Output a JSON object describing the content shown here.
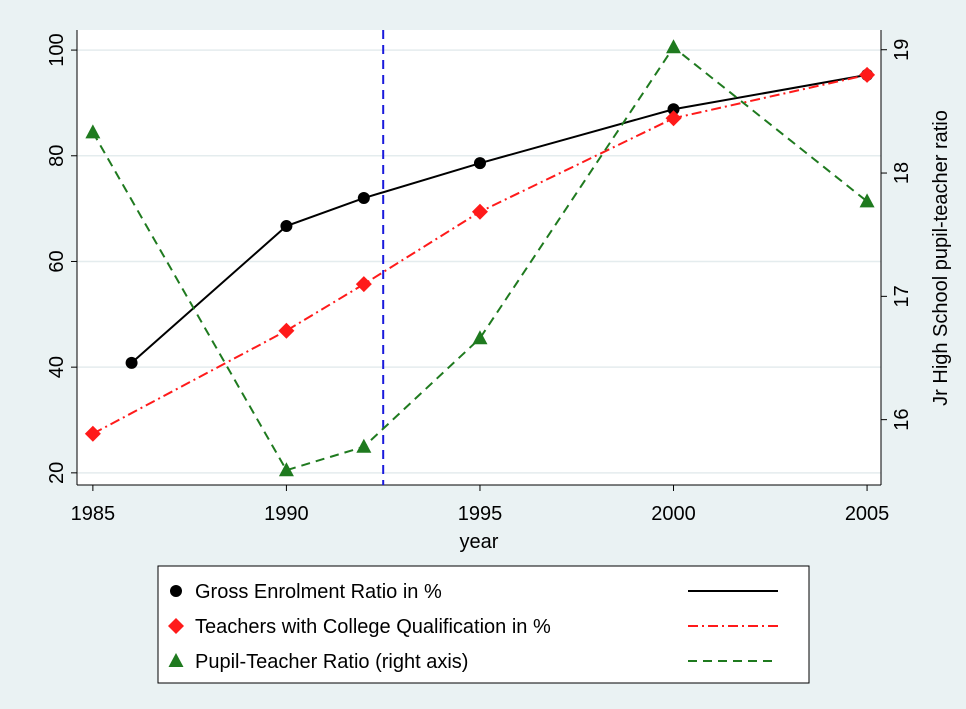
{
  "chart_data": {
    "type": "line",
    "x_label": "year",
    "y2_label": "Jr High School pupil-teacher ratio",
    "xlim": [
      1984.59,
      2005.36
    ],
    "xticks": [
      1985,
      1990,
      1995,
      2000,
      2005
    ],
    "ylim": [
      17.7,
      103.8
    ],
    "yticks": [
      20,
      40,
      60,
      80,
      100
    ],
    "y2lim": [
      15.47,
      19.16
    ],
    "y2ticks": [
      16,
      17,
      18,
      19
    ],
    "grid": true,
    "vline": {
      "x": 1992.5,
      "color": "#1a1adc"
    },
    "series": [
      {
        "name": "Gross Enrolment Ratio in %",
        "color": "#000000",
        "marker": "circle",
        "line_style": "solid",
        "x": [
          1986,
          1990,
          1992,
          1995,
          2000,
          2005
        ],
        "values": [
          40.8,
          66.7,
          72.0,
          78.6,
          88.8,
          95.3
        ]
      },
      {
        "name": "Teachers with College Qualification in %",
        "color": "#ff1a1a",
        "marker": "diamond",
        "line_style": "dashdot",
        "x": [
          1985,
          1990,
          1992,
          1995,
          2000,
          2005
        ],
        "values": [
          27.4,
          46.9,
          55.7,
          69.4,
          87.1,
          95.3
        ]
      },
      {
        "name": "Pupil-Teacher Ratio (right axis)",
        "color": "#1f7a1f",
        "marker": "triangle",
        "line_style": "dash",
        "axis": "y2",
        "x": [
          1985,
          1990,
          1992,
          1995,
          2000,
          2005
        ],
        "values": [
          18.33,
          15.59,
          15.78,
          16.66,
          19.02,
          17.77
        ]
      }
    ]
  }
}
